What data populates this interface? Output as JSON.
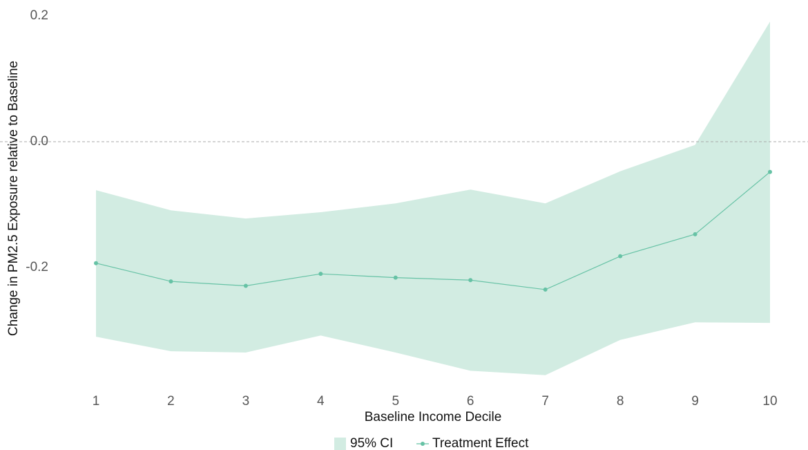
{
  "chart_data": {
    "type": "line",
    "x_label": "Baseline Income Decile",
    "y_label": "Change in PM2.5 Exposure relative to Baseline",
    "x": [
      1,
      2,
      3,
      4,
      5,
      6,
      7,
      8,
      9,
      10
    ],
    "xlim": [
      1,
      10
    ],
    "xticks": [
      1,
      2,
      3,
      4,
      5,
      6,
      7,
      8,
      9,
      10
    ],
    "ylim": [
      -0.39,
      0.2
    ],
    "yticks": [
      0.2,
      {
        "value": 0,
        "label": "0.0"
      },
      -0.2
    ],
    "reference_line": 0,
    "grid": false,
    "legend": "bottom",
    "ci": {
      "name": "95% CI",
      "color": "#d2ece2",
      "upper": [
        -0.077,
        -0.109,
        -0.122,
        -0.112,
        -0.098,
        -0.076,
        -0.098,
        -0.047,
        -0.005,
        0.191
      ],
      "lower": [
        -0.31,
        -0.333,
        -0.335,
        -0.308,
        -0.335,
        -0.364,
        -0.371,
        -0.315,
        -0.287,
        -0.288
      ]
    },
    "series": [
      {
        "name": "Treatment Effect",
        "color": "#66c2a5",
        "values": [
          -0.193,
          -0.222,
          -0.229,
          -0.21,
          -0.216,
          -0.22,
          -0.235,
          -0.182,
          -0.147,
          -0.048
        ]
      }
    ]
  }
}
